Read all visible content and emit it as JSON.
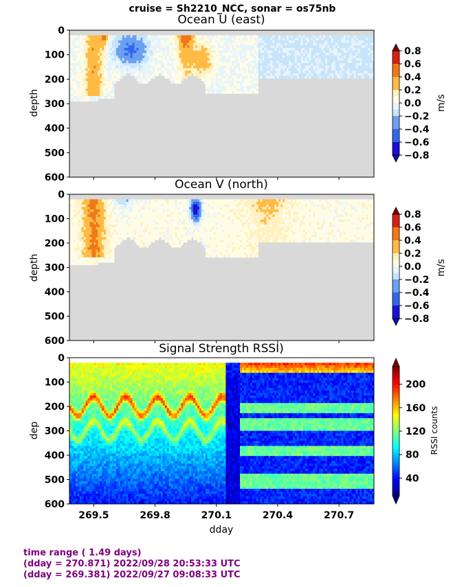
{
  "figure": {
    "suptitle": "cruise = Sh2210_NCC,  sonar = os75nb",
    "xlabel": "dday",
    "footer": [
      "time range ( 1.49 days)",
      "(dday = 270.871) 2022/09/28 20:53:33 UTC",
      "(dday = 269.381) 2022/09/27 09:08:33 UTC"
    ],
    "nodata_color": "#d9d9d9"
  },
  "chart_data": [
    {
      "type": "heatmap",
      "title": "Ocean U (east)",
      "ylabel": "depth",
      "xlim": [
        269.381,
        270.871
      ],
      "ylim": [
        600,
        0
      ],
      "xticks": [
        269.5,
        269.8,
        270.1,
        270.4,
        270.7
      ],
      "xtick_labels": [],
      "yticks": [
        0,
        100,
        200,
        300,
        400,
        500,
        600
      ],
      "colorbar": {
        "label": "m/s",
        "ticks": [
          0.8,
          0.6,
          0.4,
          0.2,
          0.0,
          -0.2,
          -0.4,
          -0.6,
          -0.8
        ],
        "tick_labels": [
          "0.8",
          "0.6",
          "0.4",
          "0.2",
          "0.0",
          "−0.2",
          "−0.4",
          "−0.6",
          "−0.8"
        ],
        "levels": [
          -0.8,
          -0.6,
          -0.4,
          -0.2,
          -0.1,
          0.0,
          0.1,
          0.2,
          0.4,
          0.6,
          0.8
        ],
        "colors": [
          "#1a10d8",
          "#3366ee",
          "#6aa0f0",
          "#c8e4fa",
          "#e6f4fc",
          "#fffce6",
          "#fff1c0",
          "#ffbb44",
          "#f07818",
          "#d82010"
        ],
        "extend_low": "#1010b0",
        "extend_high": "#800000"
      }
    },
    {
      "type": "heatmap",
      "title": "Ocean V (north)",
      "ylabel": "depth",
      "xlim": [
        269.381,
        270.871
      ],
      "ylim": [
        600,
        0
      ],
      "xticks": [
        269.5,
        269.8,
        270.1,
        270.4,
        270.7
      ],
      "xtick_labels": [],
      "yticks": [
        0,
        100,
        200,
        300,
        400,
        500,
        600
      ],
      "colorbar": {
        "label": "m/s",
        "ticks": [
          0.8,
          0.6,
          0.4,
          0.2,
          0.0,
          -0.2,
          -0.4,
          -0.6,
          -0.8
        ],
        "tick_labels": [
          "0.8",
          "0.6",
          "0.4",
          "0.2",
          "0.0",
          "−0.2",
          "−0.4",
          "−0.6",
          "−0.8"
        ],
        "levels": [
          -0.8,
          -0.6,
          -0.4,
          -0.2,
          -0.1,
          0.0,
          0.1,
          0.2,
          0.4,
          0.6,
          0.8
        ],
        "colors": [
          "#1a10d8",
          "#3366ee",
          "#6aa0f0",
          "#c8e4fa",
          "#e6f4fc",
          "#fffce6",
          "#fff1c0",
          "#ffbb44",
          "#f07818",
          "#d82010"
        ],
        "extend_low": "#1010b0",
        "extend_high": "#800000"
      }
    },
    {
      "type": "heatmap",
      "title": "Signal Strength RSSI)",
      "ylabel": "dep",
      "xlim": [
        269.381,
        270.871
      ],
      "ylim": [
        600,
        0
      ],
      "xticks": [
        269.5,
        269.8,
        270.1,
        270.4,
        270.7
      ],
      "xtick_labels": [
        "269.5",
        "269.8",
        "270.1",
        "270.4",
        "270.7"
      ],
      "yticks": [
        0,
        100,
        200,
        300,
        400,
        500,
        600
      ],
      "colorbar": {
        "label": "RSSI counts",
        "range": [
          10,
          230
        ],
        "ticks": [
          200,
          160,
          120,
          80,
          40
        ],
        "tick_labels": [
          "200",
          "160",
          "120",
          "80",
          "40"
        ],
        "colormap": "jet"
      }
    }
  ]
}
